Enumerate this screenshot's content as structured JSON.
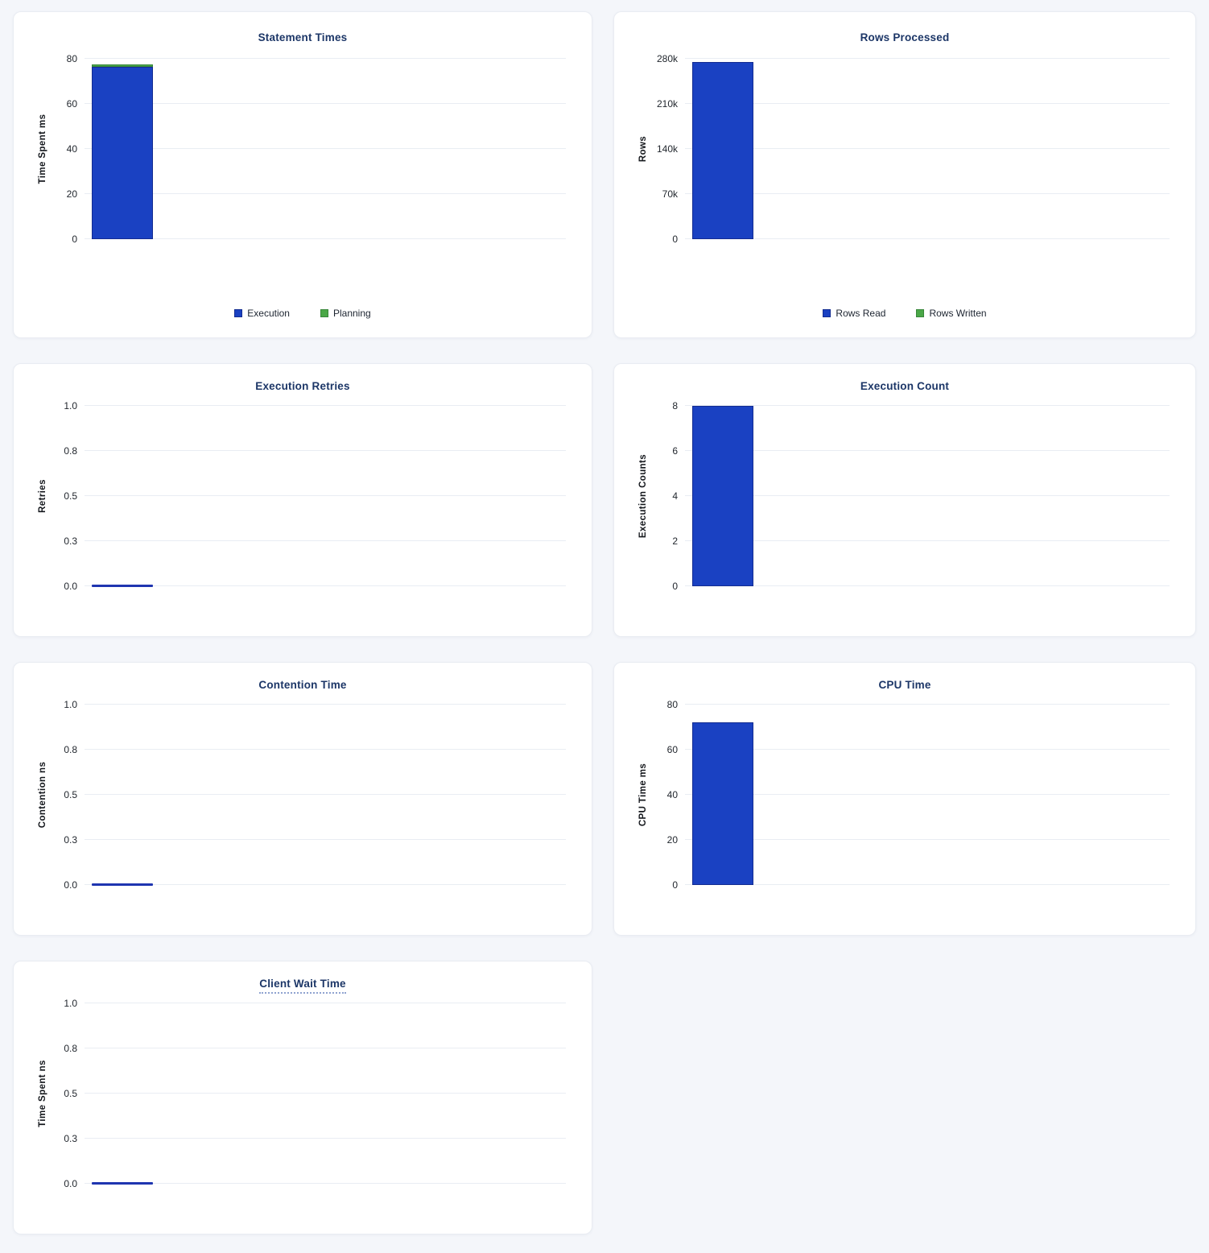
{
  "page": {
    "background": "#f4f6fa",
    "card_background": "#ffffff"
  },
  "colors": {
    "title": "#1c3667",
    "tick_label": "#22272e",
    "axis_label": "#14171c",
    "gridline": "#e9edf3",
    "legend_text": "#1c2430",
    "zero_line": "#1f35b0",
    "blue": {
      "fill": "#1a41c2",
      "border": "#132c91"
    },
    "green": {
      "fill": "#4aa747",
      "border": "#38873a"
    }
  },
  "chart_data": [
    {
      "id": "statement-times",
      "type": "bar",
      "title": "Statement Times",
      "ylabel": "Time Spent ms",
      "ylim": [
        0,
        80
      ],
      "ytick_labels": [
        "0",
        "20",
        "40",
        "60",
        "80"
      ],
      "grid": true,
      "size": "tall",
      "stacked": true,
      "series": [
        {
          "name": "Execution",
          "color": "blue",
          "value": 76.5
        },
        {
          "name": "Planning",
          "color": "green",
          "value": 1.2
        }
      ],
      "legend_position": "bottom",
      "legend": [
        {
          "label": "Execution",
          "color": "blue"
        },
        {
          "label": "Planning",
          "color": "green"
        }
      ],
      "title_tooltip_underline": false
    },
    {
      "id": "rows-processed",
      "type": "bar",
      "title": "Rows Processed",
      "ylabel": "Rows",
      "ylim": [
        0,
        280000
      ],
      "ytick_labels": [
        "0",
        "70k",
        "140k",
        "210k",
        "280k"
      ],
      "grid": true,
      "size": "tall",
      "stacked": true,
      "series": [
        {
          "name": "Rows Read",
          "color": "blue",
          "value": 275000
        },
        {
          "name": "Rows Written",
          "color": "green",
          "value": 0
        }
      ],
      "legend_position": "bottom",
      "legend": [
        {
          "label": "Rows Read",
          "color": "blue"
        },
        {
          "label": "Rows Written",
          "color": "green"
        }
      ],
      "title_tooltip_underline": false
    },
    {
      "id": "execution-retries",
      "type": "bar",
      "title": "Execution Retries",
      "ylabel": "Retries",
      "ylim": [
        0,
        1
      ],
      "ytick_labels": [
        "0.0",
        "0.3",
        "0.5",
        "0.8",
        "1.0"
      ],
      "grid": true,
      "size": "short",
      "stacked": false,
      "series": [
        {
          "name": "Retries",
          "color": "blue",
          "value": 0
        }
      ],
      "legend": [],
      "title_tooltip_underline": false
    },
    {
      "id": "execution-count",
      "type": "bar",
      "title": "Execution Count",
      "ylabel": "Execution Counts",
      "ylim": [
        0,
        8
      ],
      "ytick_labels": [
        "0",
        "2",
        "4",
        "6",
        "8"
      ],
      "grid": true,
      "size": "short",
      "stacked": false,
      "series": [
        {
          "name": "Execution Count",
          "color": "blue",
          "value": 8
        }
      ],
      "legend": [],
      "title_tooltip_underline": false
    },
    {
      "id": "contention-time",
      "type": "bar",
      "title": "Contention Time",
      "ylabel": "Contention ns",
      "ylim": [
        0,
        1
      ],
      "ytick_labels": [
        "0.0",
        "0.3",
        "0.5",
        "0.8",
        "1.0"
      ],
      "grid": true,
      "size": "short",
      "stacked": false,
      "series": [
        {
          "name": "Contention",
          "color": "blue",
          "value": 0
        }
      ],
      "legend": [],
      "title_tooltip_underline": false
    },
    {
      "id": "cpu-time",
      "type": "bar",
      "title": "CPU Time",
      "ylabel": "CPU Time ms",
      "ylim": [
        0,
        80
      ],
      "ytick_labels": [
        "0",
        "20",
        "40",
        "60",
        "80"
      ],
      "grid": true,
      "size": "short",
      "stacked": false,
      "series": [
        {
          "name": "CPU Time",
          "color": "blue",
          "value": 72
        }
      ],
      "legend": [],
      "title_tooltip_underline": false
    },
    {
      "id": "client-wait-time",
      "type": "bar",
      "title": "Client Wait Time",
      "ylabel": "Time Spent ns",
      "ylim": [
        0,
        1
      ],
      "ytick_labels": [
        "0.0",
        "0.3",
        "0.5",
        "0.8",
        "1.0"
      ],
      "grid": true,
      "size": "short",
      "stacked": false,
      "series": [
        {
          "name": "Client Wait",
          "color": "blue",
          "value": 0
        }
      ],
      "legend": [],
      "title_tooltip_underline": true
    }
  ]
}
